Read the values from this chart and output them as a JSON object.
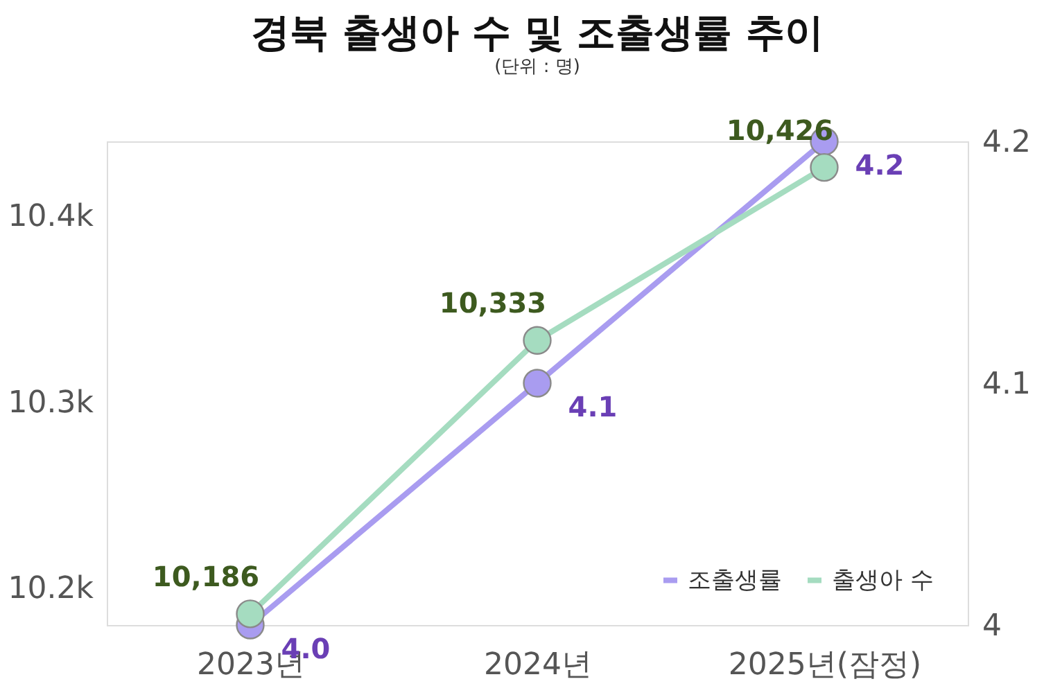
{
  "chart_data": {
    "type": "line",
    "title": "경북 출생아 수 및 조출생률 추이",
    "subtitle": "(단위 : 명)",
    "categories": [
      "2023년",
      "2024년",
      "2025년(잠정)"
    ],
    "series": [
      {
        "name": "조출생률",
        "color": "#a99cf0",
        "axis": "y2",
        "values": [
          4.0,
          4.1,
          4.2
        ],
        "value_labels": [
          "4.0",
          "4.1",
          "4.2"
        ]
      },
      {
        "name": "출생아 수",
        "color": "#a5dcc0",
        "values": [
          10186,
          10333,
          10426
        ],
        "value_labels": [
          "10,186",
          "10,333",
          "10,426"
        ]
      }
    ],
    "ylim": [
      10180,
      10440
    ],
    "yticks": [
      {
        "value": 10200,
        "label": "10.2k"
      },
      {
        "value": 10300,
        "label": "10.3k"
      },
      {
        "value": 10400,
        "label": "10.4k"
      }
    ],
    "y2lim": [
      4.0,
      4.2
    ],
    "y2ticks": [
      4,
      4.1,
      4.2
    ],
    "marker": "circle",
    "line_style": "solid",
    "grid": false,
    "legend": "bottom right"
  }
}
